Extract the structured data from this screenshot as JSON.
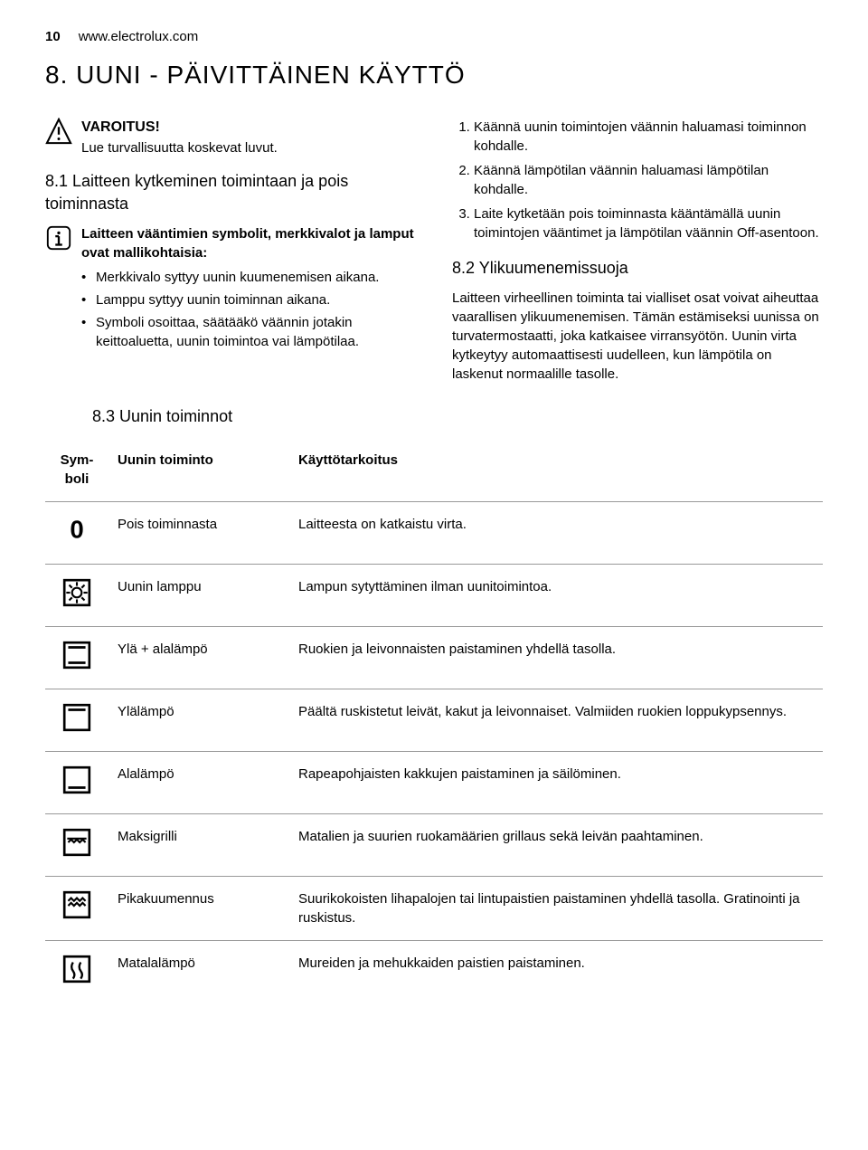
{
  "page": {
    "number": "10",
    "url": "www.electrolux.com"
  },
  "heading": "8. UUNI - PÄIVITTÄINEN KÄYTTÖ",
  "left_column": {
    "warning_title": "VAROITUS!",
    "warning_text": "Lue turvallisuutta koskevat luvut.",
    "section_81_title": "8.1 Laitteen kytkeminen toimintaan ja pois toiminnasta",
    "info_intro": "Laitteen vääntimien symbolit, merkkivalot ja lamput ovat mallikohtaisia:",
    "bullets": [
      "Merkkivalo syttyy uunin kuumenemisen aikana.",
      "Lamppu syttyy uunin toiminnan aikana.",
      "Symboli osoittaa, säätääkö väännin jotakin keittoaluetta, uunin toimintoa vai lämpötilaa."
    ]
  },
  "right_column": {
    "steps": [
      "Käännä uunin toimintojen väännin haluamasi toiminnon kohdalle.",
      "Käännä lämpötilan väännin haluamasi lämpötilan kohdalle.",
      "Laite kytketään pois toiminnasta kääntämällä uunin toimintojen vääntimet ja lämpötilan väännin Off-asentoon."
    ],
    "section_82_title": "8.2 Ylikuumenemissuoja",
    "section_82_body": "Laitteen virheellinen toiminta tai vialliset osat voivat aiheuttaa vaarallisen ylikuumenemisen. Tämän estämiseksi uunissa on turvatermostaatti, joka katkaisee virransyötön. Uunin virta kytkeytyy automaattisesti uudelleen, kun lämpötila on laskenut normaalille tasolle."
  },
  "section_83_title": "8.3 Uunin toiminnot",
  "table": {
    "headers": {
      "symbol": "Sym-boli",
      "function": "Uunin toiminto",
      "purpose": "Käyttötarkoitus"
    },
    "rows": [
      {
        "icon": "zero",
        "func": "Pois toiminnasta",
        "purpose": "Laitteesta on katkaistu virta."
      },
      {
        "icon": "lamp",
        "func": "Uunin lamppu",
        "purpose": "Lampun sytyttäminen ilman uunitoimintoa."
      },
      {
        "icon": "top-bottom",
        "func": "Ylä + alalämpö",
        "purpose": "Ruokien ja leivonnaisten paistaminen yhdellä tasolla."
      },
      {
        "icon": "top",
        "func": "Ylälämpö",
        "purpose": "Päältä ruskistetut leivät, kakut ja leivonnaiset. Valmiiden ruokien loppukypsennys."
      },
      {
        "icon": "bottom",
        "func": "Alalämpö",
        "purpose": "Rapeapohjaisten kakkujen paistaminen ja säilöminen."
      },
      {
        "icon": "maxi-grill",
        "func": "Maksigrilli",
        "purpose": "Matalien ja suurien ruokamäärien grillaus sekä leivän paahtaminen."
      },
      {
        "icon": "fast-heat",
        "func": "Pikakuumennus",
        "purpose": "Suurikokoisten lihapalojen tai lintupaistien paistaminen yhdellä tasolla. Gratinointi ja ruskistus."
      },
      {
        "icon": "low-heat",
        "func": "Matalalämpö",
        "purpose": "Mureiden ja mehukkaiden paistien paistaminen."
      }
    ]
  },
  "colors": {
    "text": "#000000",
    "background": "#ffffff",
    "border": "#999999"
  }
}
